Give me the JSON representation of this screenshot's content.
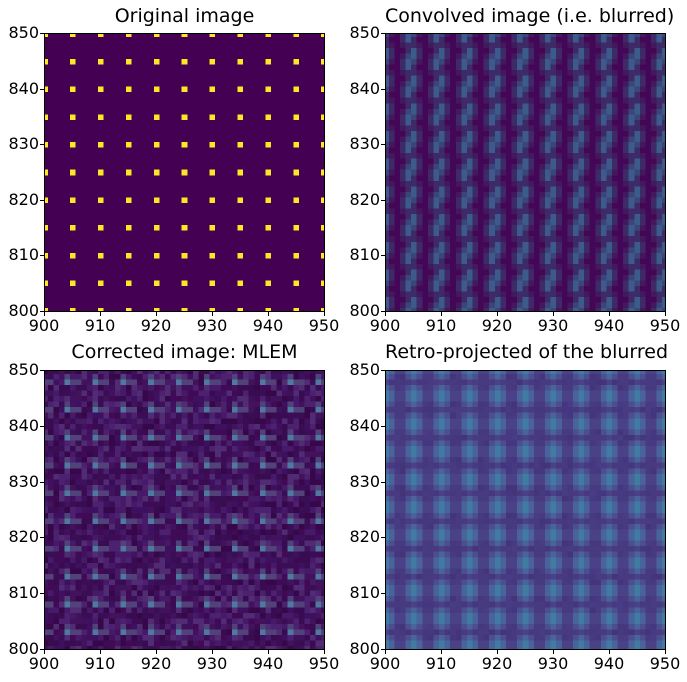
{
  "figure": {
    "background": "#ffffff",
    "text_color": "#000000"
  },
  "chart_data": {
    "type": "heatmap",
    "layout": "2x2 subplot grid",
    "colormap": "viridis",
    "dot_spacing_units": 5,
    "panels": [
      {
        "id": "original",
        "title": "Original image",
        "x_range": [
          900,
          950
        ],
        "y_range": [
          800,
          850
        ],
        "x_ticks": [
          900,
          910,
          920,
          930,
          940,
          950
        ],
        "y_ticks": [
          800,
          810,
          820,
          830,
          840,
          850
        ],
        "background": "#440154",
        "noise": null,
        "pattern": [
          {
            "color": "#fde725",
            "cells": [
              [
                0,
                0
              ]
            ]
          }
        ]
      },
      {
        "id": "convolved",
        "title": "Convolved image (i.e. blurred)",
        "x_range": [
          900,
          950
        ],
        "y_range": [
          800,
          850
        ],
        "x_ticks": [
          900,
          910,
          920,
          930,
          940,
          950
        ],
        "y_ticks": [
          800,
          810,
          820,
          830,
          840,
          850
        ],
        "background": "#440757",
        "noise": null,
        "pattern": [
          {
            "color": "#42195d",
            "cells": [
              [
                1,
                0
              ],
              [
                1,
                3
              ],
              [
                -2,
                1
              ],
              [
                -2,
                -2
              ],
              [
                0,
                4
              ],
              [
                -1,
                -3
              ]
            ]
          },
          {
            "color": "#3f2a68",
            "cells": [
              [
                1,
                1
              ],
              [
                1,
                2
              ],
              [
                -2,
                -1
              ],
              [
                -2,
                0
              ],
              [
                0,
                -1
              ],
              [
                -1,
                2
              ],
              [
                0,
                3
              ],
              [
                -1,
                -2
              ]
            ]
          },
          {
            "color": "#3b4578",
            "cells": [
              [
                0,
                0
              ],
              [
                -1,
                1
              ]
            ]
          },
          {
            "color": "#3d5a8c",
            "cells": [
              [
                0,
                1
              ],
              [
                0,
                2
              ],
              [
                -1,
                -1
              ],
              [
                -1,
                0
              ]
            ]
          }
        ]
      },
      {
        "id": "mlem",
        "title": "Corrected image: MLEM",
        "x_range": [
          900,
          950
        ],
        "y_range": [
          800,
          850
        ],
        "x_ticks": [
          900,
          910,
          920,
          930,
          940,
          950
        ],
        "y_ticks": [
          800,
          810,
          820,
          830,
          840,
          850
        ],
        "background": "#410a57",
        "noise": {
          "seed": 42,
          "density": 0.92,
          "palette": [
            "#3e1160",
            "#471969",
            "#390b50",
            "#4b2170",
            "#43125c",
            "#3a0e54",
            "#512b74",
            "#370849"
          ]
        },
        "pattern": [
          {
            "color": "#51437a",
            "cells": [
              [
                0,
                -2
              ],
              [
                1,
                -2
              ],
              [
                -1,
                -1
              ]
            ]
          },
          {
            "color": "#4e79a0",
            "cells": [
              [
                -1,
                -2
              ]
            ]
          }
        ]
      },
      {
        "id": "retro",
        "title": "Retro-projected of the blurred",
        "x_range": [
          900,
          950
        ],
        "y_range": [
          800,
          850
        ],
        "x_ticks": [
          900,
          910,
          920,
          930,
          940,
          950
        ],
        "y_ticks": [
          800,
          810,
          820,
          830,
          840,
          850
        ],
        "background": "#473a80",
        "noise": {
          "seed": 9,
          "density": 0.5,
          "palette": [
            "#46387e",
            "#483c84",
            "#453681",
            "#44357b"
          ]
        },
        "pattern": [
          {
            "color": "#4a4187",
            "cells": [
              [
                0,
                -2
              ],
              [
                0,
                3
              ],
              [
                -2,
                0
              ],
              [
                -2,
                1
              ],
              [
                2,
                0
              ],
              [
                2,
                1
              ]
            ]
          },
          {
            "color": "#4b4f8e",
            "cells": [
              [
                -1,
                -1
              ],
              [
                1,
                -1
              ],
              [
                -1,
                2
              ],
              [
                1,
                2
              ]
            ]
          },
          {
            "color": "#49639c",
            "cells": [
              [
                -1,
                0
              ],
              [
                -1,
                1
              ],
              [
                1,
                0
              ],
              [
                1,
                1
              ],
              [
                0,
                -1
              ],
              [
                0,
                2
              ]
            ]
          },
          {
            "color": "#417ba1",
            "cells": [
              [
                0,
                0
              ],
              [
                0,
                1
              ]
            ]
          }
        ]
      }
    ]
  }
}
